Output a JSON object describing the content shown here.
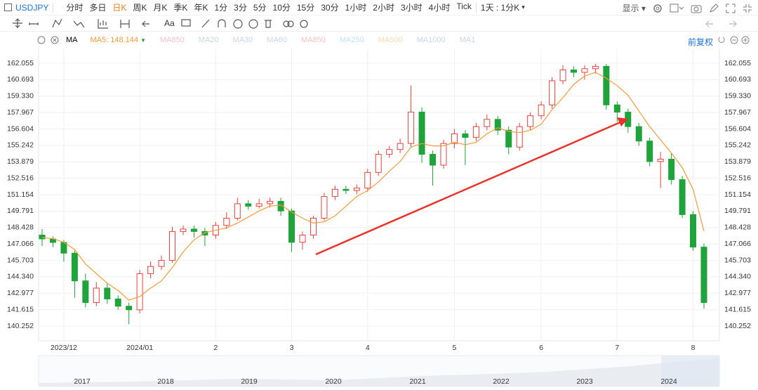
{
  "toolbar": {
    "symbol": "USDJPY",
    "intervals": [
      "分时",
      "多日",
      "日K",
      "周K",
      "月K",
      "季K",
      "年K",
      "1分",
      "3分",
      "5分",
      "10分",
      "15分",
      "30分",
      "1小时",
      "2小时",
      "3小时",
      "4小时",
      "Tick"
    ],
    "period": "1天 : 1分K",
    "display": "显示",
    "ma": "MA",
    "ma_inactive": [
      "MA850",
      "MA20",
      "MA30",
      "MA60",
      "MA850",
      "MA250",
      "MA500",
      "MA1000",
      "MA1"
    ],
    "adjust": "前复权"
  },
  "chart_data": {
    "type": "candlestick",
    "up_color": "#e5423f",
    "down_color": "#1fa33a",
    "categories": [
      null,
      null,
      "2023/12",
      null,
      null,
      null,
      null,
      null,
      null,
      "2024/01",
      null,
      null,
      null,
      null,
      null,
      null,
      "2",
      null,
      null,
      null,
      null,
      null,
      null,
      "3",
      null,
      null,
      null,
      null,
      null,
      null,
      "4",
      null,
      null,
      null,
      null,
      null,
      null,
      null,
      "5",
      null,
      null,
      null,
      null,
      null,
      null,
      null,
      "6",
      null,
      null,
      null,
      null,
      null,
      null,
      "7",
      null,
      null,
      null,
      null,
      null,
      null,
      "8",
      null
    ],
    "candles": {
      "open": [
        147.8,
        147.48,
        147.19,
        146.3,
        144.0,
        142.2,
        143.4,
        142.5,
        141.9,
        141.6,
        144.6,
        145.2,
        145.7,
        148.1,
        148.3,
        148.1,
        147.8,
        148.6,
        149.2,
        150.4,
        150.2,
        150.4,
        150.6,
        149.8,
        147.2,
        147.8,
        149.2,
        151.0,
        151.6,
        151.5,
        151.7,
        153.0,
        154.5,
        154.9,
        155.4,
        158.0,
        154.5,
        153.6,
        155.4,
        156.2,
        155.9,
        156.8,
        157.4,
        156.5,
        155.1,
        156.8,
        157.7,
        158.6,
        160.6,
        161.5,
        161.3,
        161.6,
        161.8,
        158.6,
        158.0,
        156.8,
        155.6,
        153.9,
        154.1,
        152.4,
        149.5,
        146.8
      ],
      "high": [
        148.3,
        147.7,
        147.4,
        146.5,
        144.6,
        143.9,
        143.8,
        142.8,
        142.2,
        144.9,
        145.6,
        146.1,
        148.5,
        148.6,
        148.6,
        148.4,
        148.9,
        149.7,
        150.9,
        150.7,
        150.8,
        150.9,
        150.9,
        150.0,
        148.1,
        149.4,
        151.3,
        151.9,
        151.9,
        152.0,
        153.3,
        154.8,
        155.2,
        155.8,
        160.2,
        158.4,
        154.8,
        155.7,
        156.6,
        156.5,
        157.1,
        157.8,
        157.7,
        156.8,
        157.1,
        158.0,
        158.9,
        160.9,
        161.9,
        161.8,
        161.9,
        162.0,
        162.0,
        158.9,
        158.3,
        157.1,
        155.9,
        154.7,
        154.6,
        152.7,
        149.8,
        147.1
      ],
      "low": [
        146.9,
        146.8,
        145.6,
        142.6,
        141.8,
        141.9,
        142.1,
        141.6,
        140.4,
        141.3,
        144.2,
        144.9,
        145.5,
        147.8,
        147.6,
        146.9,
        147.5,
        148.3,
        149.0,
        149.9,
        150.0,
        150.1,
        149.4,
        146.4,
        146.6,
        147.5,
        149.0,
        150.7,
        151.2,
        151.2,
        151.4,
        152.7,
        154.2,
        154.6,
        155.1,
        153.8,
        151.9,
        153.3,
        155.0,
        153.6,
        155.6,
        156.5,
        156.1,
        154.5,
        154.8,
        156.5,
        157.4,
        158.3,
        160.3,
        160.9,
        160.7,
        161.2,
        158.2,
        157.2,
        156.3,
        155.2,
        153.5,
        151.7,
        152.0,
        149.2,
        146.5,
        141.7
      ],
      "close": [
        147.48,
        147.19,
        146.3,
        144.0,
        142.2,
        143.4,
        142.5,
        141.9,
        141.6,
        144.6,
        145.2,
        145.7,
        148.1,
        148.3,
        148.1,
        147.8,
        148.6,
        149.2,
        150.4,
        150.2,
        150.4,
        150.6,
        149.8,
        147.2,
        147.8,
        149.2,
        151.0,
        151.6,
        151.5,
        151.7,
        153.0,
        154.5,
        154.9,
        155.4,
        158.0,
        154.5,
        153.6,
        155.4,
        156.2,
        155.9,
        156.8,
        157.4,
        156.5,
        155.1,
        156.8,
        157.7,
        158.6,
        160.6,
        161.5,
        161.3,
        161.6,
        161.8,
        158.6,
        158.0,
        156.8,
        155.6,
        153.9,
        154.1,
        152.4,
        149.5,
        146.8,
        142.2
      ]
    },
    "series": [
      {
        "name": "MA5: 148.144",
        "color": "#f59a3c",
        "values": [
          147.6,
          147.5,
          147.2,
          146.6,
          145.4,
          144.6,
          143.8,
          143.2,
          142.4,
          142.7,
          143.4,
          144.0,
          145.1,
          146.4,
          147.4,
          148.0,
          148.2,
          148.4,
          148.8,
          149.3,
          149.8,
          150.2,
          150.3,
          149.7,
          149.2,
          148.8,
          148.9,
          149.4,
          150.2,
          151.0,
          151.5,
          152.2,
          153.1,
          153.9,
          155.1,
          155.4,
          155.2,
          155.2,
          155.5,
          155.3,
          155.5,
          156.2,
          156.7,
          156.4,
          156.3,
          156.5,
          157.0,
          158.2,
          159.2,
          160.3,
          161.0,
          161.3,
          160.8,
          160.2,
          159.4,
          158.1,
          156.8,
          155.7,
          154.6,
          153.4,
          151.6,
          148.14
        ]
      }
    ],
    "ylim": [
      139.028,
      163.221
    ],
    "yticks": [
      {
        "value": 140.252,
        "label": "140.252"
      },
      {
        "value": 141.615,
        "label": "141.615"
      },
      {
        "value": 142.977,
        "label": "142.977"
      },
      {
        "value": 144.34,
        "label": "144.340"
      },
      {
        "value": 145.703,
        "label": "145.703"
      },
      {
        "value": 147.066,
        "label": "147.066"
      },
      {
        "value": 148.428,
        "label": "148.428"
      },
      {
        "value": 149.791,
        "label": "149.791"
      },
      {
        "value": 151.154,
        "label": "151.154"
      },
      {
        "value": 152.516,
        "label": "152.516"
      },
      {
        "value": 153.879,
        "label": "153.879"
      },
      {
        "value": 155.242,
        "label": "155.242"
      },
      {
        "value": 156.604,
        "label": "156.604"
      },
      {
        "value": 157.967,
        "label": "157.967"
      },
      {
        "value": 159.33,
        "label": "159.330"
      },
      {
        "value": 160.693,
        "label": "160.693"
      },
      {
        "value": 162.055,
        "label": "162.055"
      }
    ],
    "grid": true
  },
  "navigator_years": [
    "2017",
    "2018",
    "2019",
    "2020",
    "2021",
    "2022",
    "2023",
    "2024"
  ]
}
